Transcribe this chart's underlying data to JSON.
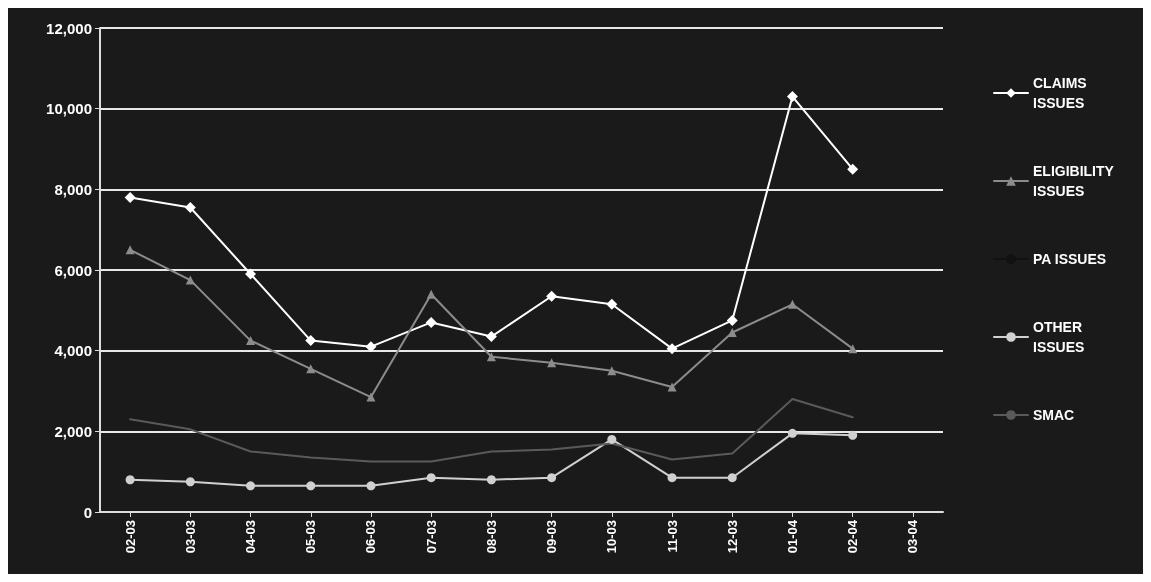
{
  "chart_data": {
    "type": "line",
    "categories": [
      "02-03",
      "03-03",
      "04-03",
      "05-03",
      "06-03",
      "07-03",
      "08-03",
      "09-03",
      "10-03",
      "11-03",
      "12-03",
      "01-04",
      "02-04",
      "03-04"
    ],
    "series": [
      {
        "name": "CLAIMS ISSUES",
        "color": "#ffffff",
        "marker": "diamond",
        "values": [
          7800,
          7550,
          5900,
          4250,
          4100,
          4700,
          4350,
          5350,
          5150,
          4050,
          4750,
          10300,
          8500,
          null
        ]
      },
      {
        "name": "ELIGIBILITY ISSUES",
        "color": "#8c8c8c",
        "marker": "triangle",
        "values": [
          6500,
          5750,
          4250,
          3550,
          2850,
          5400,
          3850,
          3700,
          3500,
          3100,
          4450,
          5150,
          4050,
          null
        ]
      },
      {
        "name": "PA ISSUES",
        "color": "#111111",
        "marker": "none",
        "values": [
          null,
          null,
          null,
          null,
          null,
          null,
          null,
          null,
          null,
          null,
          null,
          null,
          null,
          null
        ]
      },
      {
        "name": "OTHER ISSUES",
        "color": "#d0d0d0",
        "marker": "circle",
        "values": [
          800,
          750,
          650,
          650,
          650,
          850,
          800,
          850,
          1800,
          850,
          850,
          1950,
          1900,
          null
        ]
      },
      {
        "name": "SMAC",
        "color": "#5a5a5a",
        "marker": "none",
        "values": [
          2300,
          2050,
          1500,
          1350,
          1250,
          1250,
          1500,
          1550,
          1700,
          1300,
          1450,
          2800,
          2350,
          null
        ]
      }
    ],
    "ylim": [
      0,
      12000
    ],
    "yticks": [
      0,
      {
        "value": 2000,
        "label": "2,000"
      },
      {
        "value": 4000,
        "label": "4,000"
      },
      {
        "value": 6000,
        "label": "6,000"
      },
      {
        "value": 8000,
        "label": "8,000"
      },
      {
        "value": 10000,
        "label": "10,000"
      },
      {
        "value": 12000,
        "label": "12,000"
      }
    ],
    "grid": "y",
    "legend": "right",
    "line_style": "solid"
  }
}
